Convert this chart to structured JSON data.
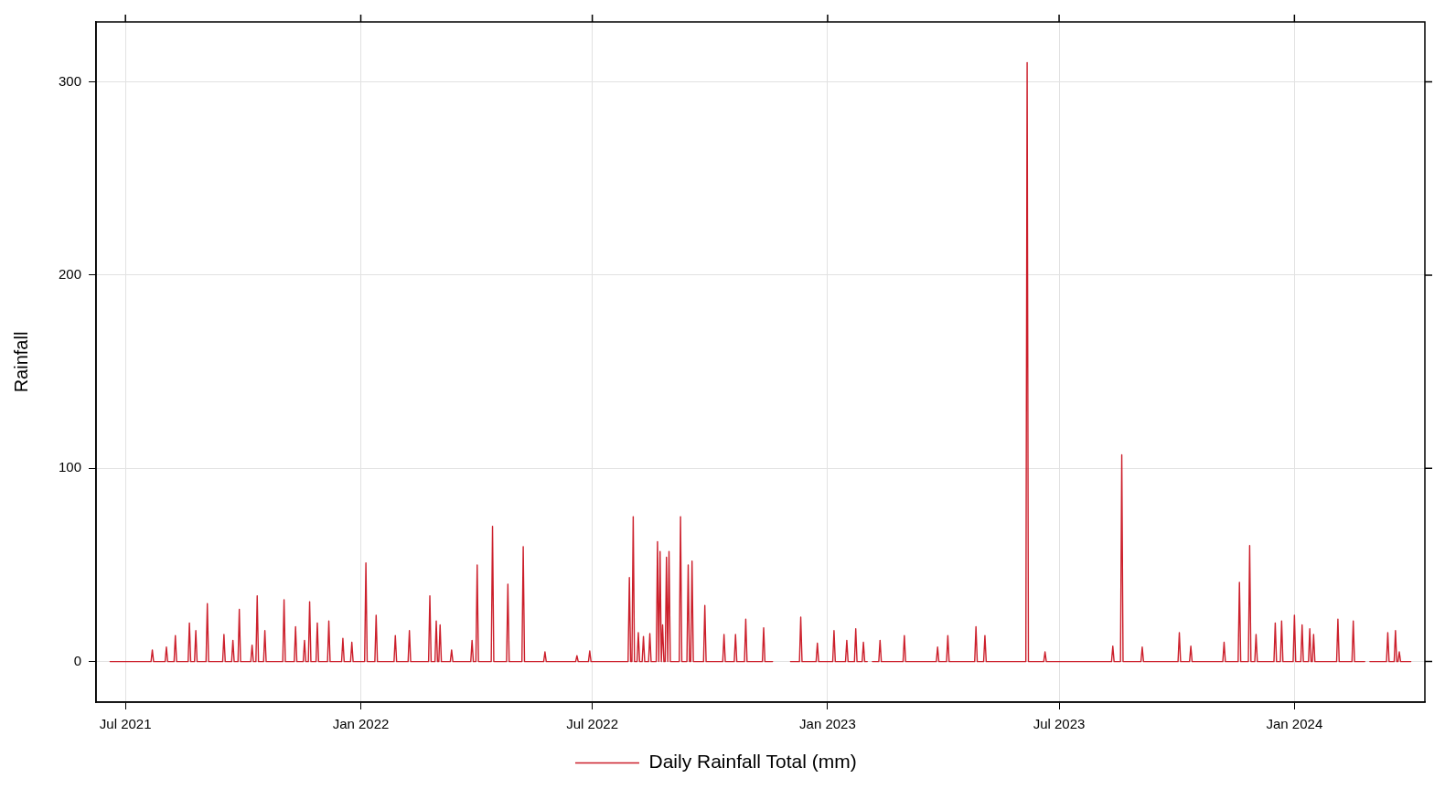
{
  "chart_data": {
    "type": "line",
    "ylabel": "Rainfall",
    "xlim": [
      "2021-06-08",
      "2024-04-12"
    ],
    "xticks": [
      {
        "value": "2021-07-01",
        "label": "Jul 2021"
      },
      {
        "value": "2022-01-01",
        "label": "Jan 2022"
      },
      {
        "value": "2022-07-01",
        "label": "Jul 2022"
      },
      {
        "value": "2023-01-01",
        "label": "Jan 2023"
      },
      {
        "value": "2023-07-01",
        "label": "Jul 2023"
      },
      {
        "value": "2024-01-01",
        "label": "Jan 2024"
      }
    ],
    "ylim": [
      -21,
      331
    ],
    "yticks": [
      0,
      100,
      200,
      300
    ],
    "grid": true,
    "legend": "bottom",
    "marker": "none",
    "line_style": "solid",
    "series": [
      {
        "name": "Daily Rainfall Total (mm)",
        "color": "#cc1f2b",
        "x": [
          "2021-06-19",
          "2021-07-21",
          "2021-07-22",
          "2021-07-23",
          "2021-08-01",
          "2021-08-02",
          "2021-08-03",
          "2021-08-08",
          "2021-08-09",
          "2021-08-10",
          "2021-08-19",
          "2021-08-20",
          "2021-08-21",
          "2021-08-24",
          "2021-08-25",
          "2021-08-26",
          "2021-09-02",
          "2021-09-03",
          "2021-09-04",
          "2021-09-15",
          "2021-09-16",
          "2021-09-17",
          "2021-09-22",
          "2021-09-23",
          "2021-09-24",
          "2021-09-27",
          "2021-09-28",
          "2021-09-29",
          "2021-10-07",
          "2021-10-08",
          "2021-10-09",
          "2021-10-11",
          "2021-10-12",
          "2021-10-13",
          "2021-10-17",
          "2021-10-18",
          "2021-10-19",
          "2021-11-01",
          "2021-11-02",
          "2021-11-03",
          "2021-11-10",
          "2021-11-11",
          "2021-11-12",
          "2021-11-17",
          "2021-11-18",
          "2021-11-19",
          "2021-11-21",
          "2021-11-22",
          "2021-11-23",
          "2021-11-27",
          "2021-11-28",
          "2021-11-29",
          "2021-12-06",
          "2021-12-07",
          "2021-12-08",
          "2021-12-17",
          "2021-12-18",
          "2021-12-19",
          "2021-12-24",
          "2021-12-25",
          "2021-12-26",
          "2022-01-04",
          "2022-01-05",
          "2022-01-06",
          "2022-01-12",
          "2022-01-13",
          "2022-01-14",
          "2022-01-27",
          "2022-01-28",
          "2022-01-29",
          "2022-02-07",
          "2022-02-08",
          "2022-02-09",
          "2022-02-23",
          "2022-02-24",
          "2022-02-25",
          "2022-02-28",
          "2022-03-01",
          "2022-03-02",
          "2022-03-03",
          "2022-03-04",
          "2022-03-05",
          "2022-03-12",
          "2022-03-13",
          "2022-03-14",
          "2022-03-28",
          "2022-03-29",
          "2022-03-30",
          "2022-04-01",
          "2022-04-02",
          "2022-04-03",
          "2022-04-13",
          "2022-04-14",
          "2022-04-15",
          "2022-04-25",
          "2022-04-26",
          "2022-04-27",
          "2022-05-07",
          "2022-05-08",
          "2022-05-09",
          "2022-05-24",
          "2022-05-25",
          "2022-05-26",
          "2022-06-18",
          "2022-06-19",
          "2022-06-20",
          "2022-06-28",
          "2022-06-29",
          "2022-06-30",
          "2022-07-29",
          "2022-07-30",
          "2022-07-31",
          "2022-08-01",
          "2022-08-02",
          "2022-08-03",
          "2022-08-05",
          "2022-08-06",
          "2022-08-07",
          "2022-08-09",
          "2022-08-10",
          "2022-08-11",
          "2022-08-14",
          "2022-08-15",
          "2022-08-16",
          "2022-08-20",
          "2022-08-21",
          "2022-08-22",
          "2022-08-23",
          "2022-08-24",
          "2022-08-25",
          "2022-08-26",
          "2022-08-27",
          "2022-08-28",
          "2022-08-29",
          "2022-08-30",
          "2022-08-31",
          "2022-09-07",
          "2022-09-08",
          "2022-09-09",
          "2022-09-13",
          "2022-09-14",
          "2022-09-15",
          "2022-09-16",
          "2022-09-17",
          "2022-09-18",
          "2022-09-26",
          "2022-09-27",
          "2022-09-28",
          "2022-10-11",
          "2022-10-12",
          "2022-10-13",
          "2022-10-20",
          "2022-10-21",
          "2022-10-22",
          "2022-10-28",
          "2022-10-29",
          "2022-10-30",
          "2022-11-11",
          "2022-11-12",
          "2022-11-13",
          "2022-11-19",
          "2022-11-20",
          "2022-12-03",
          "2022-12-10",
          "2022-12-11",
          "2022-12-12",
          "2022-12-23",
          "2022-12-24",
          "2022-12-25",
          "2023-01-05",
          "2023-01-06",
          "2023-01-07",
          "2023-01-15",
          "2023-01-16",
          "2023-01-17",
          "2023-01-22",
          "2023-01-23",
          "2023-01-24",
          "2023-01-28",
          "2023-01-29",
          "2023-01-30",
          "2023-02-01",
          "2023-02-02",
          "2023-02-05",
          "2023-02-10",
          "2023-02-11",
          "2023-02-12",
          "2023-03-01",
          "2023-03-02",
          "2023-03-03",
          "2023-03-27",
          "2023-03-28",
          "2023-03-29",
          "2023-04-04",
          "2023-04-05",
          "2023-04-06",
          "2023-04-26",
          "2023-04-27",
          "2023-04-28",
          "2023-05-03",
          "2023-05-04",
          "2023-05-05",
          "2023-06-05",
          "2023-06-06",
          "2023-06-07",
          "2023-06-19",
          "2023-06-20",
          "2023-06-21",
          "2023-08-11",
          "2023-08-12",
          "2023-08-13",
          "2023-08-18",
          "2023-08-19",
          "2023-08-20",
          "2023-09-03",
          "2023-09-04",
          "2023-09-05",
          "2023-10-02",
          "2023-10-03",
          "2023-10-04",
          "2023-10-11",
          "2023-10-12",
          "2023-10-13",
          "2023-11-06",
          "2023-11-07",
          "2023-11-08",
          "2023-11-18",
          "2023-11-19",
          "2023-11-20",
          "2023-11-26",
          "2023-11-27",
          "2023-11-28",
          "2023-12-01",
          "2023-12-02",
          "2023-12-03",
          "2023-12-16",
          "2023-12-17",
          "2023-12-18",
          "2023-12-21",
          "2023-12-22",
          "2023-12-23",
          "2023-12-31",
          "2024-01-01",
          "2024-01-02",
          "2024-01-06",
          "2024-01-07",
          "2024-01-08",
          "2024-01-12",
          "2024-01-13",
          "2024-01-14",
          "2024-01-15",
          "2024-01-16",
          "2024-01-17",
          "2024-02-03",
          "2024-02-04",
          "2024-02-05",
          "2024-02-15",
          "2024-02-16",
          "2024-02-17",
          "2024-02-25",
          "2024-02-26",
          "2024-02-29",
          "2024-03-13",
          "2024-03-14",
          "2024-03-15",
          "2024-03-19",
          "2024-03-20",
          "2024-03-21",
          "2024-03-22",
          "2024-03-23",
          "2024-03-24",
          "2024-04-01"
        ],
        "values": [
          0,
          0,
          6,
          0,
          0,
          7.5,
          0,
          0,
          13.5,
          0,
          0,
          20,
          0,
          0,
          16,
          0,
          0,
          30,
          0,
          0,
          14,
          0,
          0,
          11,
          0,
          0,
          27,
          0,
          0,
          8.5,
          0,
          0,
          34,
          0,
          0,
          16,
          0,
          0,
          32,
          0,
          0,
          18,
          0,
          0,
          11,
          0,
          0,
          31,
          0,
          0,
          20,
          0,
          0,
          21,
          0,
          0,
          12,
          0,
          0,
          10,
          0,
          0,
          51,
          0,
          0,
          24,
          0,
          0,
          13.5,
          0,
          0,
          16,
          0,
          0,
          34,
          0,
          0,
          21,
          0,
          0,
          19,
          0,
          0,
          6,
          0,
          0,
          11,
          0,
          0,
          50,
          0,
          0,
          70,
          0,
          0,
          40,
          0,
          0,
          59.5,
          0,
          0,
          5,
          0,
          0,
          3,
          0,
          0,
          5.5,
          0,
          0,
          43.5,
          0,
          0,
          75,
          0,
          0,
          15,
          0,
          0,
          13,
          0,
          0,
          14.5,
          0,
          0,
          62,
          0,
          57,
          0,
          19,
          0,
          0,
          54,
          0,
          57,
          0,
          0,
          75,
          0,
          0,
          50,
          0,
          0,
          52,
          0,
          0,
          29,
          0,
          0,
          14,
          0,
          0,
          14,
          0,
          0,
          22,
          0,
          0,
          17.5,
          0,
          0,
          null,
          0,
          0,
          23,
          0,
          0,
          9.5,
          0,
          0,
          16,
          0,
          0,
          11,
          0,
          0,
          17,
          0,
          0,
          10,
          0,
          0,
          null,
          0,
          0,
          11,
          0,
          0,
          13.5,
          0,
          0,
          7.5,
          0,
          0,
          13.5,
          0,
          0,
          18,
          0,
          0,
          13.5,
          0,
          0,
          310,
          0,
          0,
          5,
          0,
          0,
          8,
          0,
          0,
          107,
          0,
          0,
          7.5,
          0,
          0,
          15,
          0,
          0,
          8,
          0,
          0,
          10,
          0,
          0,
          41,
          0,
          0,
          60,
          0,
          0,
          14,
          0,
          0,
          20,
          0,
          0,
          21,
          0,
          0,
          24,
          0,
          0,
          19,
          0,
          0,
          17,
          0,
          0,
          14,
          0,
          0,
          22,
          0,
          0,
          21,
          0,
          0,
          null,
          0,
          0,
          15,
          0,
          0,
          16,
          0,
          0,
          5,
          0,
          0
        ]
      }
    ]
  }
}
